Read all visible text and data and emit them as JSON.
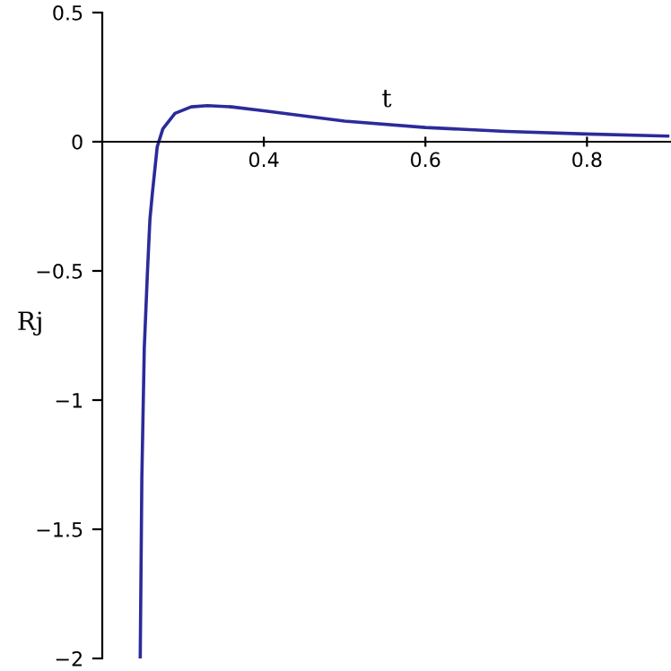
{
  "chart_data": {
    "type": "line",
    "xlabel": "t",
    "ylabel": "Rj",
    "x": [
      0.247,
      0.249,
      0.252,
      0.256,
      0.259,
      0.262,
      0.268,
      0.275,
      0.29,
      0.31,
      0.33,
      0.36,
      0.4,
      0.5,
      0.6,
      0.7,
      0.8,
      0.9
    ],
    "series": [
      {
        "color": "#2b2b9b",
        "values": [
          -2,
          -1.3,
          -0.8,
          -0.5,
          -0.3,
          -0.2,
          -0.02,
          0.05,
          0.11,
          0.135,
          0.14,
          0.135,
          0.12,
          0.08,
          0.055,
          0.04,
          0.03,
          0.022
        ]
      }
    ],
    "xlim": [
      0.2,
      0.904
    ],
    "ylim": [
      -2,
      0.5
    ],
    "xticks": [
      0.4,
      0.6,
      0.8
    ],
    "yticks": [
      0.5,
      0,
      {
        "value": -0.5,
        "label": "−0.5"
      },
      {
        "value": -1,
        "label": "−1"
      },
      {
        "value": -1.5,
        "label": "−1.5"
      },
      {
        "value": -2,
        "label": "−2"
      }
    ],
    "grid": false,
    "legend": false,
    "marker": "none",
    "line_style": "solid"
  }
}
